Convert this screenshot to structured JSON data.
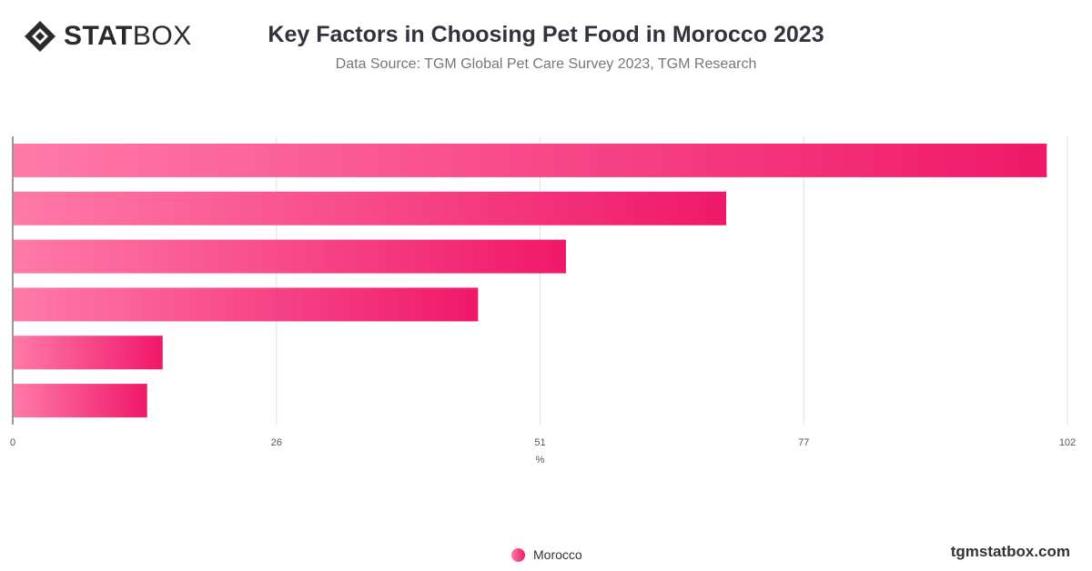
{
  "brand": {
    "logo_bold": "STAT",
    "logo_light": "BOX",
    "website": "tgmstatbox.com"
  },
  "colors": {
    "bar_start": "#ff7aa8",
    "bar_end": "#f0186a",
    "grid": "#e0e0e0",
    "axis": "#333333"
  },
  "chart_data": {
    "type": "bar",
    "orientation": "horizontal",
    "title": "Key Factors in Choosing Pet Food in Morocco 2023",
    "subtitle": "Data Source: TGM Global Pet Care Survey 2023, TGM Research",
    "xlabel": "%",
    "ylabel": "",
    "xlim": [
      0,
      102
    ],
    "xticks": [
      "0",
      "26",
      "51",
      "77",
      "102"
    ],
    "xtick_values": [
      0,
      25.5,
      51,
      76.5,
      102
    ],
    "grid": true,
    "legend": "bottom-center",
    "categories": [
      "",
      "",
      "",
      "",
      "",
      ""
    ],
    "series": [
      {
        "name": "Morocco",
        "values": [
          100,
          69,
          53.5,
          45,
          14.5,
          13
        ]
      }
    ]
  }
}
